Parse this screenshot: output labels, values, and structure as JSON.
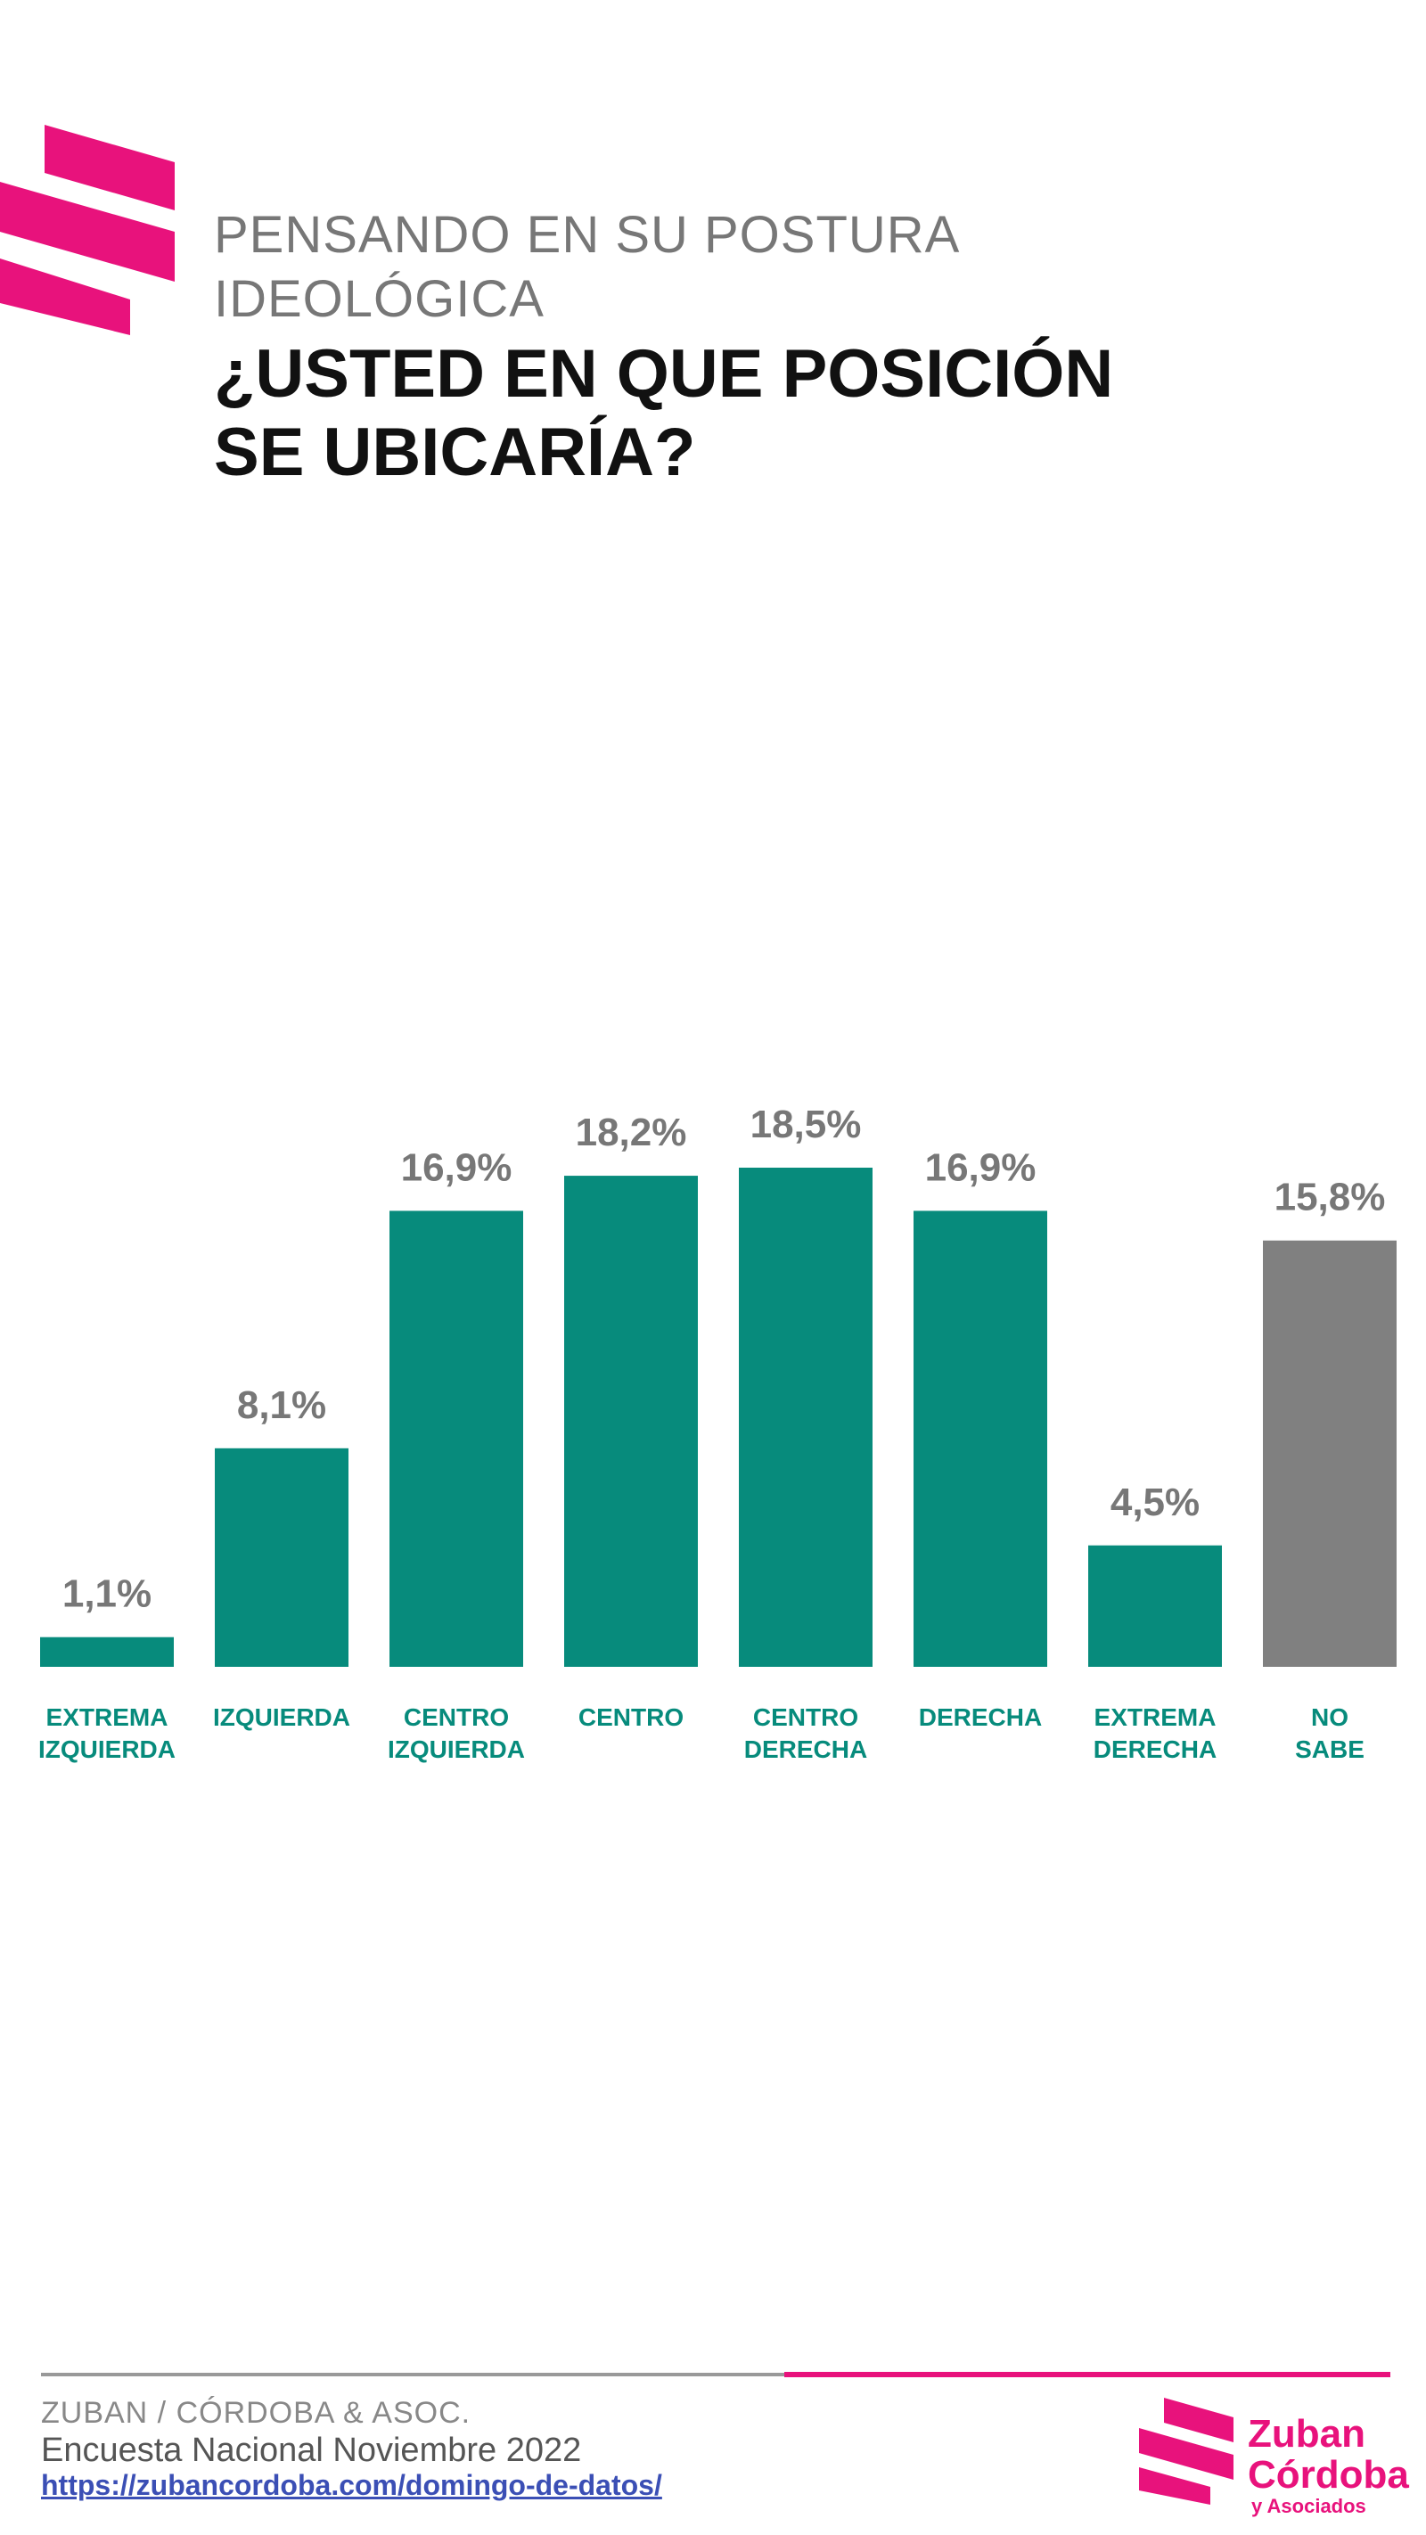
{
  "header": {
    "subtitle": "PENSANDO EN SU POSTURA\nIDEOLÓGICA",
    "title": "¿USTED EN QUE POSICIÓN\nSE UBICARÍA?"
  },
  "chart_data": {
    "type": "bar",
    "categories": [
      "EXTREMA\nIZQUIERDA",
      "IZQUIERDA",
      "CENTRO\nIZQUIERDA",
      "CENTRO",
      "CENTRO\nDERECHA",
      "DERECHA",
      "EXTREMA\nDERECHA",
      "NO\nSABE"
    ],
    "values": [
      1.1,
      8.1,
      16.9,
      18.2,
      18.5,
      16.9,
      4.5,
      15.8
    ],
    "value_labels": [
      "1,1%",
      "8,1%",
      "16,9%",
      "18,2%",
      "18,5%",
      "16,9%",
      "4,5%",
      "15,8%"
    ],
    "bar_colors": [
      "#078b7c",
      "#078b7c",
      "#078b7c",
      "#078b7c",
      "#078b7c",
      "#078b7c",
      "#078b7c",
      "#808080"
    ],
    "label_color": "#078b7c",
    "value_label_color": "#777777",
    "ylim": [
      0,
      18.5
    ],
    "grid": false
  },
  "footer": {
    "org": "ZUBAN / CÓRDOBA & ASOC.",
    "survey": "Encuesta Nacional Noviembre 2022",
    "url": "https://zubancordoba.com/domingo-de-datos/"
  },
  "brand": {
    "line1": "Zuban",
    "line2": "Córdoba",
    "line3": "y Asociados"
  },
  "colors": {
    "accent": "#e8127c",
    "bar": "#078b7c",
    "bar_other": "#808080"
  }
}
